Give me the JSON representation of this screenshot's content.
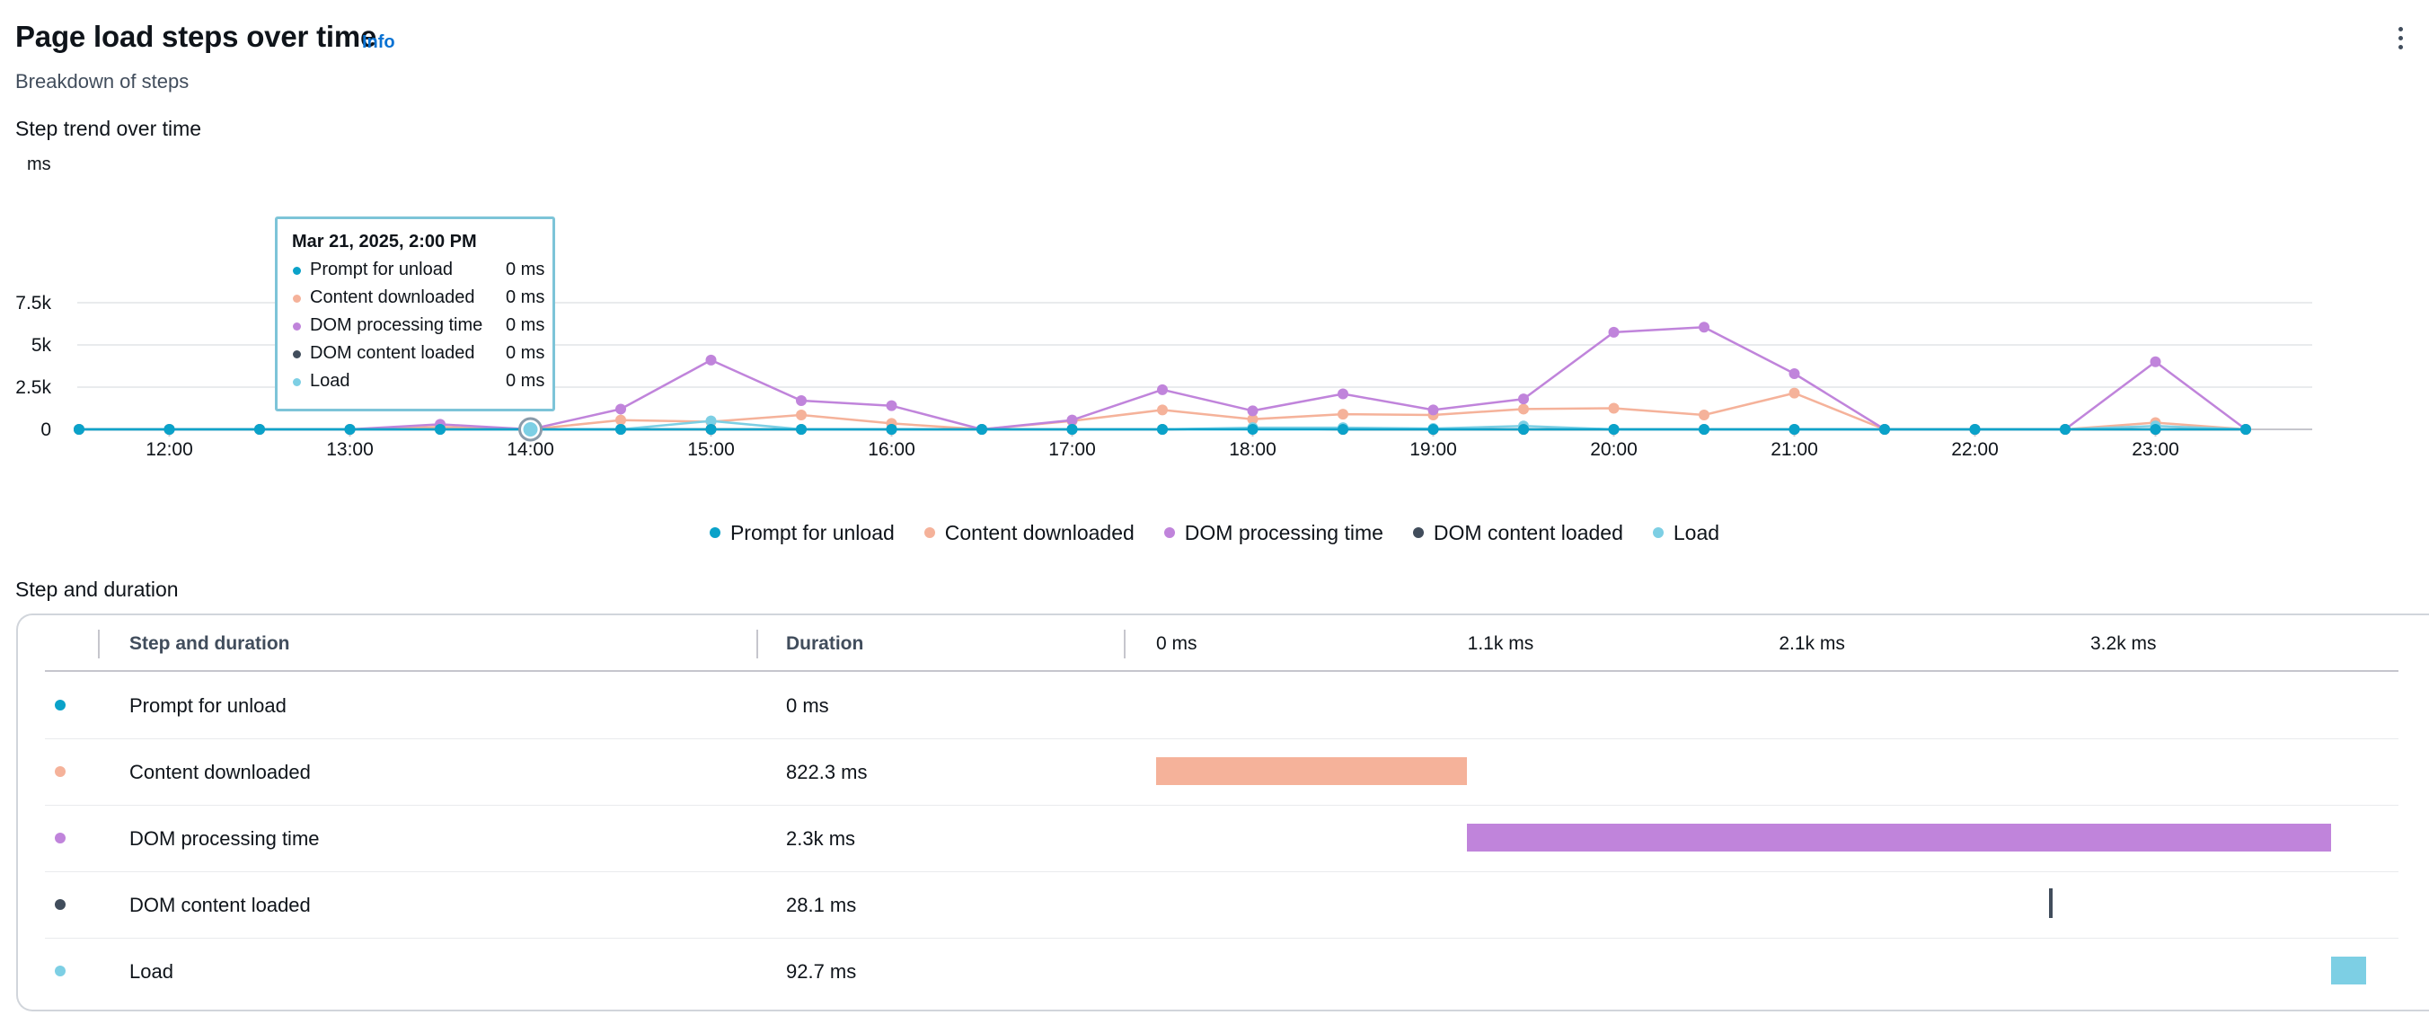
{
  "header": {
    "title": "Page load steps over time",
    "info_label": "Info",
    "subtitle": "Breakdown of steps"
  },
  "chart_section": {
    "heading": "Step trend over time",
    "unit": "ms"
  },
  "tooltip": {
    "title": "Mar 21, 2025, 2:00 PM",
    "rows": [
      {
        "name": "Prompt for unload",
        "value": "0 ms",
        "color": "#0aa2c9"
      },
      {
        "name": "Content downloaded",
        "value": "0 ms",
        "color": "#f5b29a"
      },
      {
        "name": "DOM processing time",
        "value": "0 ms",
        "color": "#c084db"
      },
      {
        "name": "DOM content loaded",
        "value": "0 ms",
        "color": "#414d5c"
      },
      {
        "name": "Load",
        "value": "0 ms",
        "color": "#7dcfe4"
      }
    ]
  },
  "legend": [
    {
      "name": "Prompt for unload",
      "color": "#0aa2c9"
    },
    {
      "name": "Content downloaded",
      "color": "#f5b29a"
    },
    {
      "name": "DOM processing time",
      "color": "#c084db"
    },
    {
      "name": "DOM content loaded",
      "color": "#414d5c"
    },
    {
      "name": "Load",
      "color": "#7dcfe4"
    }
  ],
  "chart_data": {
    "type": "line",
    "y_unit": "ms",
    "ylim": [
      0,
      7500
    ],
    "y_ticks": [
      "0",
      "2.5k",
      "5k",
      "7.5k"
    ],
    "y_tick_values": [
      0,
      2500,
      5000,
      7500
    ],
    "x_range": [
      "11:30",
      "23:30"
    ],
    "x_tick_labels": [
      "12:00",
      "13:00",
      "14:00",
      "15:00",
      "16:00",
      "17:00",
      "18:00",
      "19:00",
      "20:00",
      "21:00",
      "22:00",
      "23:00"
    ],
    "x_tick_values": [
      12,
      13,
      14,
      15,
      16,
      17,
      18,
      19,
      20,
      21,
      22,
      23
    ],
    "x": [
      11.5,
      12,
      12.5,
      13,
      13.5,
      14,
      14.5,
      15,
      15.5,
      16,
      16.5,
      17,
      17.5,
      18,
      18.5,
      19,
      19.5,
      20,
      20.5,
      21,
      21.5,
      22,
      22.5,
      23,
      23.5
    ],
    "highlight_x": 14,
    "grid": true,
    "legend_position": "bottom",
    "series": [
      {
        "name": "Prompt for unload",
        "color": "#0aa2c9",
        "values": [
          0,
          0,
          0,
          0,
          0,
          0,
          0,
          0,
          0,
          0,
          0,
          0,
          0,
          0,
          0,
          0,
          0,
          0,
          0,
          0,
          0,
          0,
          0,
          0,
          0
        ]
      },
      {
        "name": "Content downloaded",
        "color": "#f5b29a",
        "values": [
          0,
          0,
          0,
          0,
          150,
          0,
          550,
          450,
          850,
          350,
          0,
          500,
          1150,
          600,
          900,
          850,
          1200,
          1250,
          850,
          2150,
          0,
          0,
          0,
          400,
          0
        ]
      },
      {
        "name": "DOM processing time",
        "color": "#c084db",
        "values": [
          0,
          0,
          0,
          0,
          300,
          0,
          1200,
          4100,
          1700,
          1400,
          0,
          550,
          2350,
          1100,
          2100,
          1150,
          1800,
          5750,
          6050,
          3300,
          0,
          0,
          0,
          4000,
          0
        ]
      },
      {
        "name": "DOM content loaded",
        "color": "#414d5c",
        "values": [
          0,
          0,
          0,
          0,
          0,
          0,
          0,
          0,
          0,
          0,
          0,
          0,
          0,
          50,
          0,
          0,
          0,
          0,
          0,
          0,
          0,
          0,
          0,
          0,
          0
        ]
      },
      {
        "name": "Load",
        "color": "#7dcfe4",
        "values": [
          0,
          0,
          0,
          0,
          0,
          0,
          0,
          500,
          0,
          0,
          0,
          0,
          0,
          100,
          100,
          50,
          200,
          0,
          0,
          0,
          0,
          0,
          0,
          200,
          0
        ]
      }
    ]
  },
  "table_section": {
    "heading": "Step and duration",
    "columns": {
      "step": "Step and duration",
      "duration": "Duration"
    },
    "axis": {
      "ticks": [
        "0 ms",
        "1.1k ms",
        "2.1k ms",
        "3.2k ms"
      ],
      "tick_values": [
        0,
        1066.7,
        2133.3,
        3200
      ],
      "max_value": 4140
    },
    "rows": [
      {
        "name": "Prompt for unload",
        "duration": "0 ms",
        "color": "#0aa2c9",
        "start": 0,
        "length": 0
      },
      {
        "name": "Content downloaded",
        "duration": "822.3 ms",
        "color": "#f5b29a",
        "start": 0,
        "length": 1066
      },
      {
        "name": "DOM processing time",
        "duration": "2.3k ms",
        "color": "#c084db",
        "start": 1066,
        "length": 2960
      },
      {
        "name": "DOM content loaded",
        "duration": "28.1 ms",
        "color": "#414d5c",
        "start": 3057,
        "length": 14
      },
      {
        "name": "Load",
        "duration": "92.7 ms",
        "color": "#7dcfe4",
        "start": 4026,
        "length": 120
      }
    ]
  }
}
